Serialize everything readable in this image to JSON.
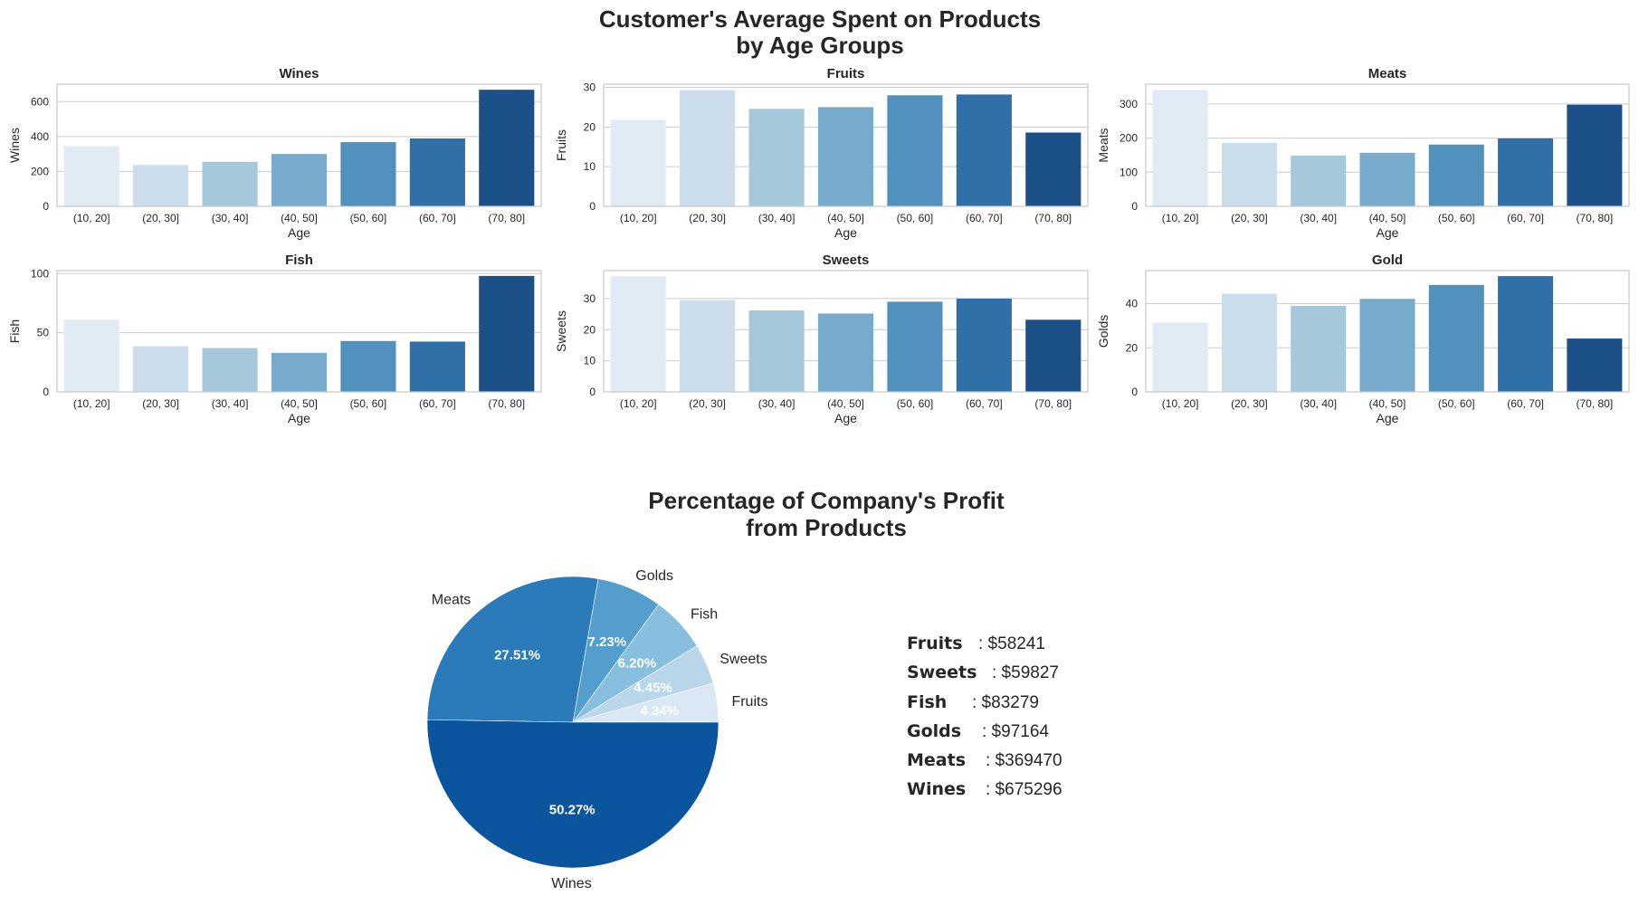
{
  "suptitle": [
    "Customer's Average Spent on Products",
    "by Age Groups"
  ],
  "pie_title": [
    "Percentage of Company's Profit",
    "from Products"
  ],
  "palette": [
    "#e0ebf6",
    "#cbdcea",
    "#a6c8db",
    "#78aacb",
    "#5290bd",
    "#3070a8",
    "#1c5089"
  ],
  "chart_data": [
    {
      "type": "bar",
      "title": "Wines",
      "xlabel": "Age",
      "ylabel": "Wines",
      "categories": [
        "(10, 20]",
        "(20, 30]",
        "(30, 40]",
        "(40, 50]",
        "(50, 60]",
        "(60, 70]",
        "(70, 80]"
      ],
      "values": [
        345,
        237,
        255,
        300,
        368,
        389,
        668
      ],
      "ylim": [
        0,
        700
      ],
      "yticks": [
        0,
        200,
        400,
        600
      ],
      "grid": true
    },
    {
      "type": "bar",
      "title": "Fruits",
      "xlabel": "Age",
      "ylabel": "Fruits",
      "categories": [
        "(10, 20]",
        "(20, 30]",
        "(30, 40]",
        "(40, 50]",
        "(50, 60]",
        "(60, 70]",
        "(70, 80]"
      ],
      "values": [
        21.8,
        29.3,
        24.6,
        25.0,
        28.0,
        28.2,
        18.6
      ],
      "ylim": [
        0,
        30.8
      ],
      "yticks": [
        0,
        10,
        20,
        30
      ],
      "grid": true
    },
    {
      "type": "bar",
      "title": "Meats",
      "xlabel": "Age",
      "ylabel": "Meats",
      "categories": [
        "(10, 20]",
        "(20, 30]",
        "(30, 40]",
        "(40, 50]",
        "(50, 60]",
        "(60, 70]",
        "(70, 80]"
      ],
      "values": [
        341,
        186,
        149,
        157,
        181,
        199,
        298
      ],
      "ylim": [
        0,
        358
      ],
      "yticks": [
        0,
        100,
        200,
        300
      ],
      "grid": true
    },
    {
      "type": "bar",
      "title": "Fish",
      "xlabel": "Age",
      "ylabel": "Fish",
      "categories": [
        "(10, 20]",
        "(20, 30]",
        "(30, 40]",
        "(40, 50]",
        "(50, 60]",
        "(60, 70]",
        "(70, 80]"
      ],
      "values": [
        61,
        38.5,
        37,
        33,
        43,
        42.5,
        98
      ],
      "ylim": [
        0,
        102.5
      ],
      "yticks": [
        0,
        50,
        100
      ],
      "grid": true
    },
    {
      "type": "bar",
      "title": "Sweets",
      "xlabel": "Age",
      "ylabel": "Sweets",
      "categories": [
        "(10, 20]",
        "(20, 30]",
        "(30, 40]",
        "(40, 50]",
        "(50, 60]",
        "(60, 70]",
        "(70, 80]"
      ],
      "values": [
        37.2,
        29.5,
        26.2,
        25.2,
        29.0,
        30.0,
        23.2
      ],
      "ylim": [
        0,
        39
      ],
      "yticks": [
        0,
        10,
        20,
        30
      ],
      "grid": true
    },
    {
      "type": "bar",
      "title": "Gold",
      "xlabel": "Age",
      "ylabel": "Golds",
      "categories": [
        "(10, 20]",
        "(20, 30]",
        "(30, 40]",
        "(40, 50]",
        "(50, 60]",
        "(60, 70]",
        "(70, 80]"
      ],
      "values": [
        31.5,
        44.5,
        39,
        42.2,
        48.5,
        52.5,
        24.2
      ],
      "ylim": [
        0,
        55
      ],
      "yticks": [
        0,
        20,
        40
      ],
      "grid": true
    },
    {
      "type": "pie",
      "title": "Percentage of Company's Profit from Products",
      "labels": [
        "Fruits",
        "Sweets",
        "Fish",
        "Golds",
        "Meats",
        "Wines"
      ],
      "values": [
        58241,
        59827,
        83279,
        97164,
        369470,
        675296
      ],
      "percent_labels": [
        "4.34%",
        "4.45%",
        "6.20%",
        "7.23%",
        "27.51%",
        "50.27%"
      ],
      "colors": [
        "#dae8f5",
        "#bad6eb",
        "#89bfde",
        "#539ecd",
        "#2b7bba",
        "#0b559f"
      ]
    }
  ],
  "legend": [
    {
      "name": "Fruits",
      "value": ": $58241"
    },
    {
      "name": "Sweets",
      "value": ": $59827"
    },
    {
      "name": "Fish",
      "value": ": $83279"
    },
    {
      "name": "Golds",
      "value": ": $97164"
    },
    {
      "name": "Meats",
      "value": ": $369470"
    },
    {
      "name": "Wines",
      "value": ": $675296"
    }
  ]
}
